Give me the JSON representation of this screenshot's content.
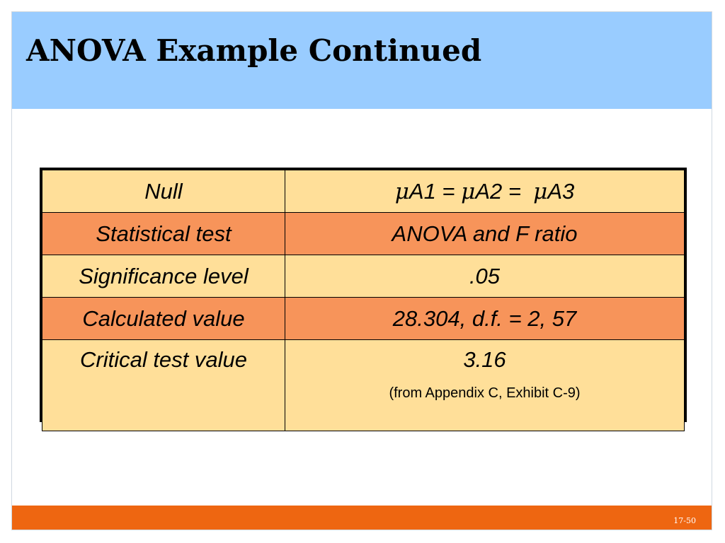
{
  "slide": {
    "title": "ANOVA Example Continued",
    "page_number": "17-50"
  },
  "table": {
    "rows": [
      {
        "label": "Null",
        "value_parts": [
          "μ",
          "A1 = ",
          "μ",
          "A2 =  ",
          "μ",
          "A3"
        ]
      },
      {
        "label": "Statistical test",
        "value": "ANOVA and F ratio"
      },
      {
        "label": "Significance level",
        "value": ".05"
      },
      {
        "label": "Calculated value",
        "value": "28.304, d.f. = 2, 57"
      },
      {
        "label": "Critical test value",
        "value": "3.16",
        "note": "(from Appendix C, Exhibit C-9)"
      }
    ]
  },
  "colors": {
    "title_band": "#99ccff",
    "row_light": "#ffdf99",
    "row_dark": "#f7945a",
    "footer_bar": "#ee6611"
  }
}
